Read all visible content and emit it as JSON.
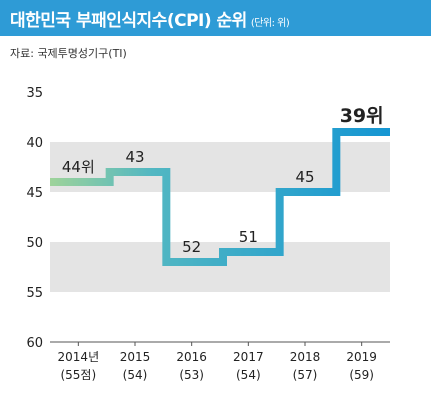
{
  "header": {
    "title": "대한민국 부패인식지수(CPI) 순위",
    "unit": "(단위: 위)",
    "source": "자료: 국제투명성기구(TI)"
  },
  "colors": {
    "header_band": "#2e9bd6",
    "band_gray": "#e4e4e4",
    "step_start": "#9ed39a",
    "step_mid": "#52b7c2",
    "step_end": "#1596d3"
  },
  "chart_data": {
    "type": "line",
    "step": true,
    "inverted_y": true,
    "title": "대한민국 부패인식지수(CPI) 순위",
    "unit_label": "(단위: 위)",
    "ylim": [
      35,
      60
    ],
    "yticks": [
      "35",
      "40",
      "45",
      "50",
      "55",
      "60"
    ],
    "categories": [
      "2014년",
      "2015",
      "2016",
      "2017",
      "2018",
      "2019"
    ],
    "sublabels": [
      "(55점)",
      "(54)",
      "(53)",
      "(54)",
      "(57)",
      "(59)"
    ],
    "values": [
      44,
      43,
      52,
      51,
      45,
      39
    ],
    "data_labels": [
      "44위",
      "43",
      "52",
      "51",
      "45",
      "39위"
    ]
  }
}
